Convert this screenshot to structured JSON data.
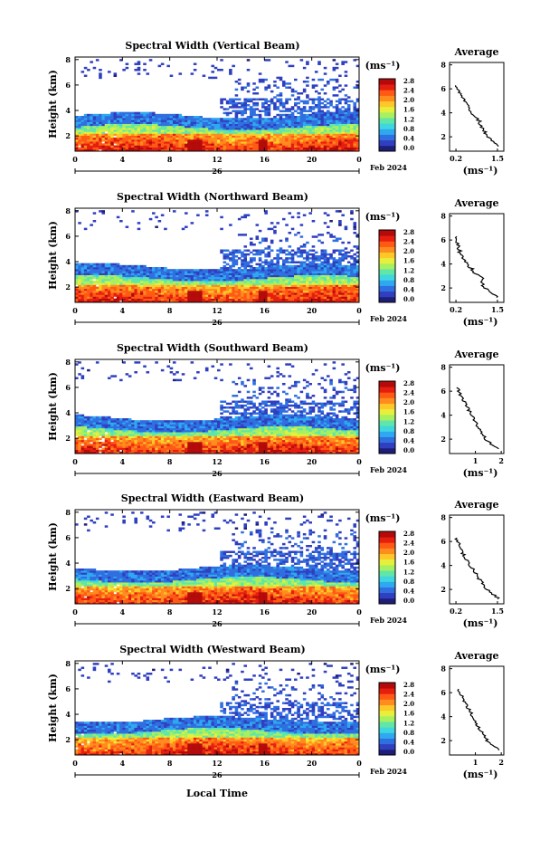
{
  "figure": {
    "date_label": "Feb 2024",
    "day_label": "26",
    "xlabel": "Local Time",
    "ylabel": "Height (km)",
    "unit": "(ms⁻¹)",
    "avg_title": "Average"
  },
  "colorbar": {
    "ticks": [
      "2.8",
      "2.4",
      "2.0",
      "1.6",
      "1.2",
      "0.8",
      "0.4",
      "0.0"
    ],
    "colors": [
      "#1e1e78",
      "#2f3fc0",
      "#2f6fe0",
      "#2ea8f0",
      "#3fd6e0",
      "#5fe6a8",
      "#a8f060",
      "#e6f03c",
      "#ffc828",
      "#ff8c1e",
      "#ff5a14",
      "#e61e10",
      "#b40a0a"
    ]
  },
  "chart_data": [
    {
      "type": "heatmap",
      "title": "Spectral Width (Vertical Beam)",
      "x_ticks": [
        "0",
        "4",
        "8",
        "12",
        "16",
        "20",
        "0"
      ],
      "xlim": [
        0,
        24
      ],
      "y_ticks": [
        "2",
        "4",
        "6",
        "8"
      ],
      "ylim": [
        0.8,
        8.2
      ],
      "colorbar_range": [
        0.0,
        2.8
      ],
      "average_profile": {
        "x_ticks": [
          "0.2",
          "1.5"
        ],
        "xlim": [
          0.0,
          1.7
        ],
        "y_ticks": [
          "2",
          "4",
          "6",
          "8"
        ],
        "height_km": [
          1.2,
          1.6,
          2.0,
          2.4,
          2.8,
          3.2,
          3.6,
          4.0,
          4.4,
          4.8,
          5.2,
          5.6,
          6.0,
          6.4
        ],
        "width_ms": [
          1.55,
          1.4,
          1.2,
          1.1,
          1.0,
          0.95,
          0.85,
          0.7,
          0.6,
          0.5,
          0.45,
          0.35,
          0.25,
          0.2
        ]
      }
    },
    {
      "type": "heatmap",
      "title": "Spectral Width (Northward Beam)",
      "x_ticks": [
        "0",
        "4",
        "8",
        "12",
        "16",
        "20",
        "0"
      ],
      "xlim": [
        0,
        24
      ],
      "y_ticks": [
        "2",
        "4",
        "6",
        "8"
      ],
      "ylim": [
        0.8,
        8.2
      ],
      "colorbar_range": [
        0.0,
        2.8
      ],
      "average_profile": {
        "x_ticks": [
          "0.2",
          "1.5"
        ],
        "xlim": [
          0.0,
          1.7
        ],
        "y_ticks": [
          "2",
          "4",
          "6",
          "8"
        ],
        "height_km": [
          1.2,
          1.6,
          2.0,
          2.4,
          2.8,
          3.2,
          3.6,
          4.0,
          4.4,
          4.8,
          5.2,
          5.6,
          6.0,
          6.4
        ],
        "width_ms": [
          1.5,
          1.35,
          1.1,
          1.0,
          1.05,
          0.8,
          0.7,
          0.55,
          0.45,
          0.35,
          0.3,
          0.25,
          0.2,
          0.2
        ]
      }
    },
    {
      "type": "heatmap",
      "title": "Spectral Width (Southward Beam)",
      "x_ticks": [
        "0",
        "4",
        "8",
        "12",
        "16",
        "20",
        "0"
      ],
      "xlim": [
        0,
        24
      ],
      "y_ticks": [
        "2",
        "4",
        "6",
        "8"
      ],
      "ylim": [
        0.8,
        8.2
      ],
      "colorbar_range": [
        0.0,
        2.8
      ],
      "average_profile": {
        "x_ticks": [
          "1",
          "2"
        ],
        "xlim": [
          0.0,
          2.1
        ],
        "y_ticks": [
          "2",
          "4",
          "6",
          "8"
        ],
        "height_km": [
          1.2,
          1.6,
          2.0,
          2.4,
          2.8,
          3.2,
          3.6,
          4.0,
          4.4,
          4.8,
          5.2,
          5.6,
          6.0,
          6.4
        ],
        "width_ms": [
          1.9,
          1.6,
          1.4,
          1.3,
          1.2,
          1.05,
          0.95,
          0.85,
          0.75,
          0.65,
          0.55,
          0.45,
          0.35,
          0.3
        ]
      }
    },
    {
      "type": "heatmap",
      "title": "Spectral Width (Eastward Beam)",
      "x_ticks": [
        "0",
        "4",
        "8",
        "12",
        "16",
        "20",
        "0"
      ],
      "xlim": [
        0,
        24
      ],
      "y_ticks": [
        "2",
        "4",
        "6",
        "8"
      ],
      "ylim": [
        0.8,
        8.2
      ],
      "colorbar_range": [
        0.0,
        2.8
      ],
      "average_profile": {
        "x_ticks": [
          "0.2",
          "1.5"
        ],
        "xlim": [
          0.0,
          1.7
        ],
        "y_ticks": [
          "2",
          "4",
          "6",
          "8"
        ],
        "height_km": [
          1.2,
          1.6,
          2.0,
          2.4,
          2.8,
          3.2,
          3.6,
          4.0,
          4.4,
          4.8,
          5.2,
          5.6,
          6.0,
          6.4
        ],
        "width_ms": [
          1.55,
          1.35,
          1.2,
          1.05,
          0.95,
          0.85,
          0.75,
          0.65,
          0.55,
          0.45,
          0.4,
          0.3,
          0.25,
          0.2
        ]
      }
    },
    {
      "type": "heatmap",
      "title": "Spectral Width (Westward Beam)",
      "x_ticks": [
        "0",
        "4",
        "8",
        "12",
        "16",
        "20",
        "0"
      ],
      "xlim": [
        0,
        24
      ],
      "y_ticks": [
        "2",
        "4",
        "6",
        "8"
      ],
      "ylim": [
        0.8,
        8.2
      ],
      "colorbar_range": [
        0.0,
        2.8
      ],
      "average_profile": {
        "x_ticks": [
          "1",
          "2"
        ],
        "xlim": [
          0.0,
          2.1
        ],
        "y_ticks": [
          "2",
          "4",
          "6",
          "8"
        ],
        "height_km": [
          1.2,
          1.6,
          2.0,
          2.4,
          2.8,
          3.2,
          3.6,
          4.0,
          4.4,
          4.8,
          5.2,
          5.6,
          6.0,
          6.4
        ],
        "width_ms": [
          1.95,
          1.7,
          1.45,
          1.35,
          1.2,
          1.1,
          1.0,
          0.9,
          0.8,
          0.7,
          0.6,
          0.5,
          0.4,
          0.35
        ]
      }
    }
  ]
}
